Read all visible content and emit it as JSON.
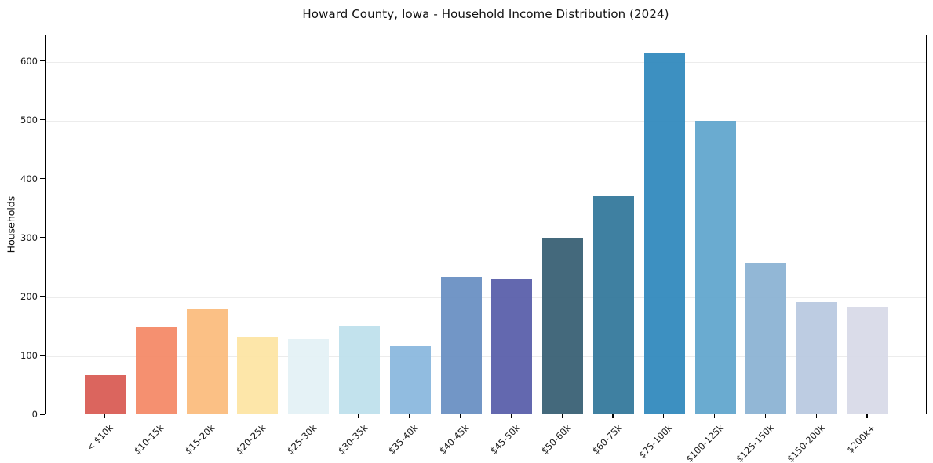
{
  "chart_data": {
    "type": "bar",
    "title": "Howard County, Iowa - Household Income Distribution (2024)",
    "xlabel": "",
    "ylabel": "Households",
    "categories": [
      "< $10k",
      "$10-15k",
      "$15-20k",
      "$20-25k",
      "$25-30k",
      "$30-35k",
      "$35-40k",
      "$40-45k",
      "$45-50k",
      "$50-60k",
      "$60-75k",
      "$75-100k",
      "$100-125k",
      "$125-150k",
      "$150-200k",
      "$200k+"
    ],
    "values": [
      65,
      147,
      177,
      131,
      127,
      148,
      114,
      232,
      228,
      299,
      369,
      613,
      497,
      256,
      189,
      181
    ],
    "bar_colors": [
      "#d95d55",
      "#f48a68",
      "#fbbd7e",
      "#fde5a4",
      "#e4f1f6",
      "#bfe0ec",
      "#8bb8de",
      "#6a90c3",
      "#5b60ab",
      "#3a6175",
      "#35799c",
      "#338abe",
      "#62a7cd",
      "#8cb3d4",
      "#b9c9e0",
      "#d8dae8"
    ],
    "y_ticks": [
      0,
      100,
      200,
      300,
      400,
      500,
      600
    ],
    "ylim": [
      0,
      645
    ],
    "grid": "horizontal",
    "legend": "none",
    "background": "#ffffff",
    "spine_color": "#000000",
    "grid_color": "#ececec",
    "text_color": "#1a1a1a"
  }
}
